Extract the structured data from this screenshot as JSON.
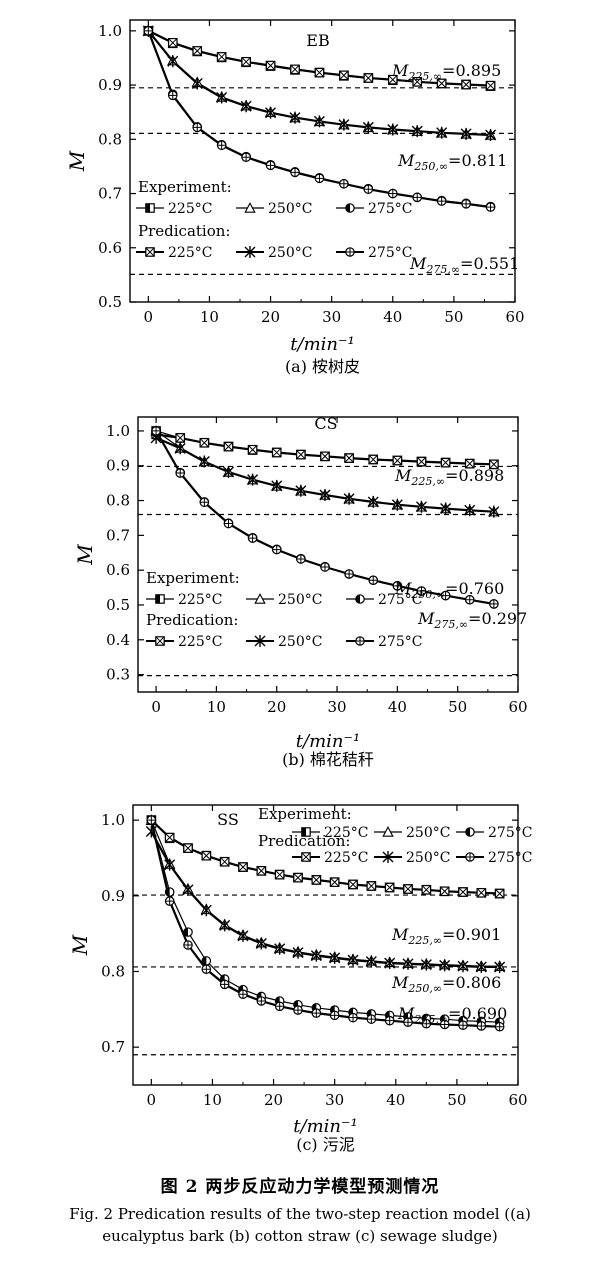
{
  "figure": {
    "caption_cn": "图 2 两步反应动力学模型预测情况",
    "caption_en": "Fig. 2 Predication results of the two-step reaction model ((a) eucalyptus bark (b) cotton straw (c) sewage sludge)"
  },
  "chart_data": [
    {
      "type": "line",
      "panel_label": "(a) 桉树皮",
      "title": "EB",
      "xlabel": "t/min⁻¹",
      "ylabel": "M",
      "xlim": [
        -3,
        60
      ],
      "ylim": [
        0.5,
        1.02
      ],
      "xticks": [
        0,
        10,
        20,
        30,
        40,
        50,
        60
      ],
      "yticks": [
        0.5,
        0.6,
        0.7,
        0.8,
        0.9,
        1.0
      ],
      "ytick_labels": [
        "0.5",
        "0.6",
        "0.7",
        "0.8",
        "0.9",
        "1.0"
      ],
      "grid": false,
      "legend": {
        "experiment_title": "Experiment:",
        "prediction_title": "Predication:",
        "labels": [
          "225°C",
          "250°C",
          "275°C"
        ],
        "placement": "left"
      },
      "asymptotes": [
        {
          "temp": "225",
          "sub": "225,∞",
          "value": 0.895,
          "label": "=0.895"
        },
        {
          "temp": "250",
          "sub": "250,∞",
          "value": 0.811,
          "label": "=0.811"
        },
        {
          "temp": "275",
          "sub": "275,∞",
          "value": 0.551,
          "label": "=0.551"
        }
      ],
      "series": [
        {
          "temp": "225",
          "x": [
            0,
            4,
            8,
            12,
            16,
            20,
            24,
            28,
            32,
            36,
            40,
            44,
            48,
            52,
            56
          ],
          "experiment": [
            1.0,
            0.977,
            0.962,
            0.951,
            0.942,
            0.935,
            0.928,
            0.923,
            0.917,
            0.913,
            0.909,
            0.906,
            0.903,
            0.901,
            0.898
          ],
          "prediction": [
            1.0,
            0.978,
            0.963,
            0.952,
            0.943,
            0.936,
            0.929,
            0.923,
            0.918,
            0.913,
            0.91,
            0.906,
            0.903,
            0.901,
            0.899
          ]
        },
        {
          "temp": "250",
          "x": [
            0,
            4,
            8,
            12,
            16,
            20,
            24,
            28,
            32,
            36,
            40,
            44,
            48,
            52,
            56
          ],
          "experiment": [
            1.0,
            0.945,
            0.905,
            0.878,
            0.862,
            0.85,
            0.84,
            0.833,
            0.827,
            0.822,
            0.818,
            0.815,
            0.812,
            0.81,
            0.808
          ],
          "prediction": [
            1.0,
            0.944,
            0.903,
            0.877,
            0.861,
            0.849,
            0.84,
            0.833,
            0.827,
            0.822,
            0.818,
            0.815,
            0.812,
            0.81,
            0.808
          ]
        },
        {
          "temp": "275",
          "x": [
            0,
            4,
            8,
            12,
            16,
            20,
            24,
            28,
            32,
            36,
            40,
            44,
            48,
            52,
            56
          ],
          "experiment": [
            1.0,
            0.883,
            0.823,
            0.79,
            0.768,
            0.753,
            0.74,
            0.729,
            0.718,
            0.709,
            0.7,
            0.693,
            0.687,
            0.682,
            0.676
          ],
          "prediction": [
            1.0,
            0.881,
            0.822,
            0.789,
            0.767,
            0.752,
            0.739,
            0.728,
            0.718,
            0.708,
            0.7,
            0.693,
            0.686,
            0.681,
            0.675
          ]
        }
      ]
    },
    {
      "type": "line",
      "panel_label": "(b) 棉花秸秆",
      "title": "CS",
      "xlabel": "t/min⁻¹",
      "ylabel": "M",
      "xlim": [
        -3,
        60
      ],
      "ylim": [
        0.25,
        1.04
      ],
      "xticks": [
        0,
        10,
        20,
        30,
        40,
        50,
        60
      ],
      "yticks": [
        0.3,
        0.4,
        0.5,
        0.6,
        0.7,
        0.8,
        0.9,
        1.0
      ],
      "ytick_labels": [
        "0.3",
        "0.4",
        "0.5",
        "0.6",
        "0.7",
        "0.8",
        "0.9",
        "1.0"
      ],
      "grid": false,
      "legend": {
        "experiment_title": "Experiment:",
        "prediction_title": "Predication:",
        "labels": [
          "225°C",
          "250°C",
          "275°C"
        ],
        "placement": "bottom-left"
      },
      "asymptotes": [
        {
          "temp": "225",
          "sub": "225,∞",
          "value": 0.898,
          "label": "=0.898"
        },
        {
          "temp": "250",
          "sub": "250,∞",
          "value": 0.76,
          "label": "=0.760"
        },
        {
          "temp": "275",
          "sub": "275,∞",
          "value": 0.297,
          "label": "=0.297"
        }
      ],
      "series": [
        {
          "temp": "225",
          "x": [
            0,
            4,
            8,
            12,
            16,
            20,
            24,
            28,
            32,
            36,
            40,
            44,
            48,
            52,
            56
          ],
          "experiment": [
            1.0,
            0.98,
            0.966,
            0.955,
            0.945,
            0.938,
            0.932,
            0.927,
            0.922,
            0.918,
            0.915,
            0.912,
            0.909,
            0.906,
            0.904
          ],
          "prediction": [
            0.99,
            0.98,
            0.966,
            0.955,
            0.946,
            0.938,
            0.932,
            0.927,
            0.922,
            0.918,
            0.915,
            0.912,
            0.909,
            0.906,
            0.904
          ]
        },
        {
          "temp": "250",
          "x": [
            0,
            4,
            8,
            12,
            16,
            20,
            24,
            28,
            32,
            36,
            40,
            44,
            48,
            52,
            56
          ],
          "experiment": [
            1.0,
            0.951,
            0.912,
            0.882,
            0.86,
            0.842,
            0.828,
            0.816,
            0.805,
            0.796,
            0.788,
            0.782,
            0.777,
            0.772,
            0.768
          ],
          "prediction": [
            0.98,
            0.95,
            0.912,
            0.882,
            0.86,
            0.842,
            0.828,
            0.816,
            0.805,
            0.796,
            0.788,
            0.782,
            0.777,
            0.772,
            0.768
          ]
        },
        {
          "temp": "275",
          "x": [
            0,
            4,
            8,
            12,
            16,
            20,
            24,
            28,
            32,
            36,
            40,
            44,
            48,
            52,
            56
          ],
          "experiment": [
            1.0,
            0.88,
            0.796,
            0.735,
            0.693,
            0.66,
            0.633,
            0.61,
            0.589,
            0.571,
            0.555,
            0.54,
            0.527,
            0.515,
            0.503
          ],
          "prediction": [
            1.0,
            0.879,
            0.795,
            0.734,
            0.692,
            0.659,
            0.632,
            0.609,
            0.589,
            0.571,
            0.555,
            0.54,
            0.527,
            0.515,
            0.503
          ]
        }
      ]
    },
    {
      "type": "line",
      "panel_label": "(c) 污泥",
      "title": "SS",
      "xlabel": "t/min⁻¹",
      "ylabel": "M",
      "xlim": [
        -3,
        60
      ],
      "ylim": [
        0.65,
        1.02
      ],
      "xticks": [
        0,
        10,
        20,
        30,
        40,
        50,
        60
      ],
      "yticks": [
        0.7,
        0.8,
        0.9,
        1.0
      ],
      "ytick_labels": [
        "0.7",
        "0.8",
        "0.9",
        "1.0"
      ],
      "grid": false,
      "legend": {
        "experiment_title": "Experiment:",
        "prediction_title": "Predication:",
        "labels": [
          "225°C",
          "250°C",
          "275°C"
        ],
        "placement": "top-right"
      },
      "asymptotes": [
        {
          "temp": "225",
          "sub": "225,∞",
          "value": 0.901,
          "label": "=0.901"
        },
        {
          "temp": "250",
          "sub": "250,∞",
          "value": 0.806,
          "label": "=0.806"
        },
        {
          "temp": "275",
          "sub": "275,∞",
          "value": 0.69,
          "label": "=0.690"
        }
      ],
      "series": [
        {
          "temp": "225",
          "x": [
            0,
            3,
            6,
            9,
            12,
            15,
            18,
            21,
            24,
            27,
            30,
            33,
            36,
            39,
            42,
            45,
            48,
            51,
            54,
            57
          ],
          "experiment": [
            1.0,
            0.976,
            0.963,
            0.953,
            0.945,
            0.938,
            0.933,
            0.928,
            0.924,
            0.921,
            0.918,
            0.915,
            0.913,
            0.911,
            0.909,
            0.908,
            0.906,
            0.905,
            0.904,
            0.903
          ],
          "prediction": [
            1.0,
            0.977,
            0.963,
            0.953,
            0.945,
            0.938,
            0.933,
            0.928,
            0.924,
            0.921,
            0.918,
            0.915,
            0.913,
            0.911,
            0.909,
            0.908,
            0.906,
            0.905,
            0.904,
            0.903
          ]
        },
        {
          "temp": "250",
          "x": [
            0,
            3,
            6,
            9,
            12,
            15,
            18,
            21,
            24,
            27,
            30,
            33,
            36,
            39,
            42,
            45,
            48,
            51,
            54,
            57
          ],
          "experiment": [
            1.0,
            0.942,
            0.909,
            0.882,
            0.862,
            0.848,
            0.838,
            0.831,
            0.826,
            0.822,
            0.819,
            0.816,
            0.814,
            0.812,
            0.811,
            0.81,
            0.809,
            0.808,
            0.807,
            0.807
          ],
          "prediction": [
            0.985,
            0.941,
            0.908,
            0.881,
            0.861,
            0.847,
            0.837,
            0.83,
            0.825,
            0.821,
            0.818,
            0.815,
            0.813,
            0.811,
            0.81,
            0.809,
            0.808,
            0.807,
            0.806,
            0.806
          ]
        },
        {
          "temp": "275",
          "x": [
            0,
            3,
            6,
            9,
            12,
            15,
            18,
            21,
            24,
            27,
            30,
            33,
            36,
            39,
            42,
            45,
            48,
            51,
            54,
            57
          ],
          "experiment": [
            1.0,
            0.905,
            0.852,
            0.814,
            0.79,
            0.776,
            0.767,
            0.761,
            0.756,
            0.752,
            0.749,
            0.746,
            0.744,
            0.742,
            0.74,
            0.738,
            0.737,
            0.735,
            0.734,
            0.733
          ],
          "prediction": [
            1.0,
            0.893,
            0.835,
            0.803,
            0.783,
            0.77,
            0.761,
            0.754,
            0.749,
            0.745,
            0.742,
            0.739,
            0.737,
            0.735,
            0.733,
            0.731,
            0.73,
            0.729,
            0.728,
            0.727
          ]
        }
      ]
    }
  ]
}
